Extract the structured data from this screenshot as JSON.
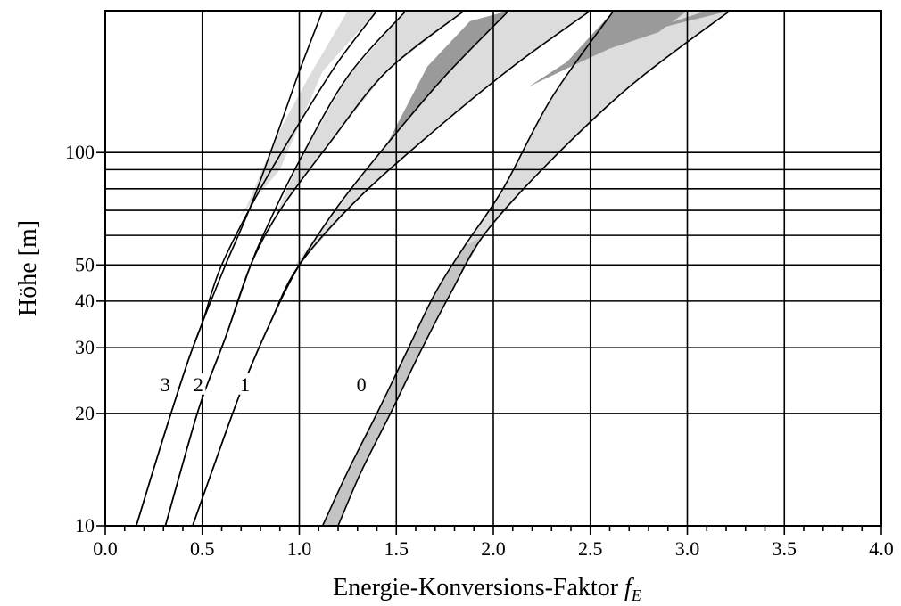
{
  "chart_data": {
    "type": "line",
    "title": "",
    "xlabel": "Energie-Konversions-Faktor",
    "xlabel_symbol": "f",
    "xlabel_subscript": "E",
    "ylabel": "Höhe [m]",
    "xlim": [
      0.0,
      4.0
    ],
    "ylim": [
      10,
      240
    ],
    "yscale": "log",
    "grid": true,
    "x_ticks_major": [
      "0.0",
      "0.5",
      "1.0",
      "1.5",
      "2.0",
      "2.5",
      "3.0",
      "3.5",
      "4.0"
    ],
    "x_ticks_minor_step": 0.1,
    "y_tick_labels": [
      "10",
      "20",
      "30",
      "40",
      "50",
      "100"
    ],
    "y_tick_values": [
      10,
      20,
      30,
      40,
      50,
      100
    ],
    "y_extra_gridlines": [
      60,
      70,
      80,
      90
    ],
    "curve_labels": [
      "3",
      "2",
      "1",
      "0"
    ],
    "series": [
      {
        "name": "3",
        "x": [
          0.16,
          0.28,
          0.42,
          0.5,
          0.62,
          0.75,
          0.88,
          1.0,
          1.12
        ],
        "y": [
          10,
          16,
          27,
          35,
          50,
          72,
          110,
          165,
          240
        ]
      },
      {
        "name": "3",
        "x": [
          0.16,
          0.28,
          0.42,
          0.5,
          0.6,
          0.8,
          1.0,
          1.2,
          1.4
        ],
        "y": [
          10,
          16,
          27,
          35,
          50,
          80,
          120,
          175,
          240
        ]
      },
      {
        "name": "2",
        "x": [
          0.31,
          0.42,
          0.5,
          0.62,
          0.75,
          0.85,
          1.0,
          1.25,
          1.55
        ],
        "y": [
          10,
          16,
          22,
          32,
          50,
          66,
          95,
          160,
          240
        ]
      },
      {
        "name": "2",
        "x": [
          0.31,
          0.42,
          0.5,
          0.62,
          0.75,
          0.9,
          1.15,
          1.45,
          1.85
        ],
        "y": [
          10,
          16,
          22,
          32,
          50,
          70,
          105,
          165,
          240
        ]
      },
      {
        "name": "1",
        "x": [
          0.45,
          0.55,
          0.7,
          0.85,
          1.0,
          1.2,
          1.45,
          1.75,
          2.08
        ],
        "y": [
          10,
          14,
          23,
          35,
          50,
          72,
          105,
          160,
          240
        ]
      },
      {
        "name": "1",
        "x": [
          0.45,
          0.55,
          0.7,
          0.85,
          1.0,
          1.3,
          1.7,
          2.1,
          2.5
        ],
        "y": [
          10,
          14,
          23,
          35,
          50,
          75,
          115,
          170,
          240
        ]
      },
      {
        "name": "0",
        "x": [
          1.12,
          1.25,
          1.4,
          1.55,
          1.7,
          1.85,
          2.05,
          2.3,
          2.62
        ],
        "y": [
          10,
          14,
          20,
          29,
          42,
          56,
          80,
          140,
          240
        ]
      },
      {
        "name": "0",
        "x": [
          1.2,
          1.32,
          1.47,
          1.62,
          1.78,
          1.95,
          2.25,
          2.7,
          3.22
        ],
        "y": [
          10,
          14,
          20,
          29,
          42,
          60,
          90,
          150,
          240
        ]
      }
    ],
    "shaded_bands": [
      {
        "shade": "light",
        "x": [
          0.68,
          0.73,
          0.88,
          1.05,
          1.25,
          1.4,
          1.12,
          0.9
        ],
        "y": [
          66,
          72,
          110,
          160,
          240,
          240,
          165,
          90
        ]
      },
      {
        "shade": "light",
        "x": [
          0.82,
          0.9,
          1.15,
          1.45,
          1.85,
          1.55,
          1.25,
          1.0
        ],
        "y": [
          58,
          70,
          105,
          165,
          240,
          240,
          160,
          95
        ]
      },
      {
        "shade": "light",
        "x": [
          0.98,
          1.2,
          1.45,
          1.75,
          2.08,
          2.5,
          2.1,
          1.7,
          1.3,
          1.0
        ],
        "y": [
          50,
          72,
          105,
          160,
          240,
          240,
          170,
          115,
          75,
          50
        ]
      },
      {
        "shade": "mid",
        "x": [
          1.12,
          1.25,
          1.4,
          1.55,
          1.7,
          1.85,
          1.95,
          1.78,
          1.62,
          1.47,
          1.32,
          1.2
        ],
        "y": [
          10,
          14,
          20,
          29,
          42,
          56,
          60,
          42,
          29,
          20,
          14,
          10
        ]
      },
      {
        "shade": "light",
        "x": [
          1.85,
          2.05,
          2.3,
          2.62,
          3.22,
          2.7,
          2.25,
          1.95
        ],
        "y": [
          56,
          80,
          140,
          240,
          240,
          150,
          90,
          60
        ]
      },
      {
        "shade": "dark",
        "x": [
          1.45,
          1.75,
          2.08,
          1.88,
          1.66
        ],
        "y": [
          105,
          160,
          240,
          225,
          170
        ]
      },
      {
        "shade": "dark",
        "x": [
          2.18,
          2.38,
          2.62,
          3.0,
          2.85,
          2.6,
          2.4
        ],
        "y": [
          150,
          175,
          240,
          240,
          210,
          190,
          170
        ]
      },
      {
        "shade": "dark",
        "x": [
          2.7,
          3.0,
          3.22,
          3.1
        ],
        "y": [
          205,
          225,
          240,
          240
        ]
      }
    ]
  }
}
